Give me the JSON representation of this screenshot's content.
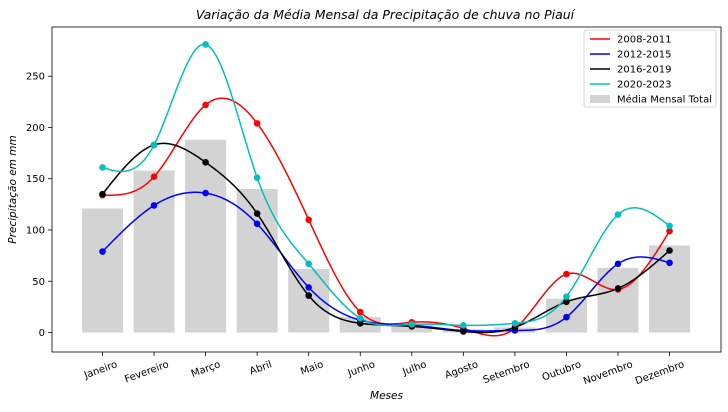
{
  "chart_data": {
    "type": "line",
    "title": "Variação da Média Mensal da Precipitação de chuva no Piauí",
    "xlabel": "Meses",
    "ylabel": "Precipitação em mm",
    "categories": [
      "Janeiro",
      "Fevereiro",
      "Março",
      "Abril",
      "Maio",
      "Junho",
      "Julho",
      "Agosto",
      "Setembro",
      "Outubro",
      "Novembro",
      "Dezembro"
    ],
    "ylim": [
      -19,
      298
    ],
    "yticks": [
      0,
      50,
      100,
      150,
      200,
      250
    ],
    "grid": false,
    "legend_position": "top-right",
    "bars": {
      "name": "Média Mensal Total",
      "color": "#d3d3d3",
      "values": [
        121,
        158,
        188,
        140,
        62,
        15,
        8,
        3,
        5,
        33,
        63,
        85
      ]
    },
    "series": [
      {
        "name": "2008-2011",
        "color": "#ff0000",
        "values": [
          134,
          152,
          222,
          204,
          110,
          20,
          10,
          4,
          4,
          57,
          42,
          99
        ]
      },
      {
        "name": "2012-2015",
        "color": "#0000ff",
        "values": [
          79,
          124,
          136,
          106,
          44,
          12,
          7,
          2,
          2,
          15,
          67,
          68
        ]
      },
      {
        "name": "2016-2019",
        "color": "#000000",
        "values": [
          135,
          183,
          166,
          116,
          36,
          9,
          6,
          1,
          5,
          30,
          43,
          80
        ]
      },
      {
        "name": "2020-2023",
        "color": "#00bfbf",
        "values": [
          161,
          183,
          281,
          151,
          67,
          14,
          8,
          7,
          9,
          35,
          115,
          104
        ]
      }
    ]
  }
}
